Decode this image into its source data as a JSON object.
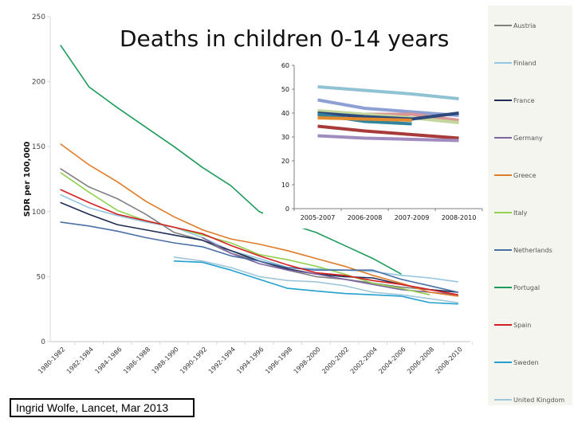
{
  "chart_data": [
    {
      "type": "line",
      "title": "Deaths in children 0-14 years",
      "xlabel": "",
      "ylabel": "SDR per 100,000",
      "ylim": [
        0,
        250
      ],
      "yticks": [
        0,
        50,
        100,
        150,
        200,
        250
      ],
      "grid": false,
      "legend": "right",
      "categories": [
        "1980-1982",
        "1982-1984",
        "1984-1986",
        "1986-1988",
        "1988-1990",
        "1990-1992",
        "1992-1994",
        "1994-1996",
        "1996-1998",
        "1998-2000",
        "2000-2002",
        "2002-2004",
        "2004-2006",
        "2006-2008",
        "2008-2010"
      ],
      "series": [
        {
          "name": "Austria",
          "color": "#808080",
          "values": [
            133,
            119,
            110,
            98,
            84,
            78,
            68,
            62,
            55,
            50,
            48,
            45,
            42,
            40,
            38
          ]
        },
        {
          "name": "Finland",
          "color": "#93c6e0",
          "values": [
            113,
            103,
            97,
            92,
            88,
            80,
            70,
            64,
            57,
            56,
            55,
            54,
            51,
            49,
            46
          ]
        },
        {
          "name": "France",
          "color": "#1f2d55",
          "values": [
            107,
            98,
            90,
            86,
            82,
            78,
            70,
            62,
            56,
            52,
            50,
            49,
            44,
            40,
            38
          ]
        },
        {
          "name": "Germany",
          "color": "#8064a2",
          "values": [
            null,
            null,
            null,
            null,
            null,
            80,
            68,
            60,
            55,
            52,
            48,
            44,
            40,
            38,
            36
          ]
        },
        {
          "name": "Greece",
          "color": "#e07b28",
          "values": [
            152,
            136,
            123,
            108,
            96,
            86,
            79,
            75,
            70,
            64,
            58,
            51,
            45,
            38,
            35
          ]
        },
        {
          "name": "Italy",
          "color": "#92d050",
          "values": [
            130,
            115,
            101,
            93,
            88,
            82,
            76,
            67,
            63,
            58,
            52,
            45,
            41,
            36,
            null
          ]
        },
        {
          "name": "Netherlands",
          "color": "#4a6fa5",
          "values": [
            92,
            89,
            85,
            80,
            76,
            73,
            66,
            62,
            57,
            55,
            55,
            55,
            48,
            43,
            38
          ]
        },
        {
          "name": "Portugal",
          "color": "#1e9b5a",
          "values": [
            228,
            196,
            180,
            165,
            150,
            134,
            120,
            100,
            91,
            84,
            74,
            64,
            52,
            null,
            null
          ]
        },
        {
          "name": "Spain",
          "color": "#d42020",
          "values": [
            117,
            107,
            98,
            93,
            88,
            83,
            74,
            66,
            59,
            53,
            51,
            47,
            44,
            40,
            36
          ]
        },
        {
          "name": "Sweden",
          "color": "#23a0d0",
          "values": [
            null,
            null,
            null,
            null,
            62,
            61,
            55,
            48,
            41,
            39,
            37,
            36,
            35,
            30,
            29
          ]
        },
        {
          "name": "United Kingdom",
          "color": "#9ec6d8",
          "values": [
            null,
            null,
            null,
            null,
            65,
            62,
            57,
            50,
            47,
            46,
            43,
            38,
            36,
            33,
            30
          ]
        }
      ]
    },
    {
      "type": "line",
      "title": "",
      "xlabel": "",
      "ylabel": "",
      "ylim": [
        0,
        60
      ],
      "yticks": [
        0,
        10,
        20,
        30,
        40,
        50,
        60
      ],
      "grid": false,
      "legend": "none",
      "placement": "inset-top-center",
      "categories": [
        "2005-2007",
        "2006-2008",
        "2007-2009",
        "2008-2010"
      ],
      "series": [
        {
          "name": "series-light-blue",
          "color": "#8fc3d3",
          "values": [
            51,
            49.5,
            48,
            46
          ]
        },
        {
          "name": "series-periwinkle",
          "color": "#8e9fd4",
          "values": [
            45.5,
            42,
            40.5,
            39
          ]
        },
        {
          "name": "series-pink",
          "color": "#d99694",
          "values": [
            39,
            39.5,
            39.5,
            37
          ]
        },
        {
          "name": "series-sage",
          "color": "#c3d69b",
          "values": [
            41,
            39.5,
            38,
            36
          ]
        },
        {
          "name": "series-olive-green",
          "color": "#a5c882",
          "values": [
            40,
            38.5,
            37.5,
            null
          ]
        },
        {
          "name": "series-navy",
          "color": "#2e4a7a",
          "values": [
            40,
            38.5,
            37.5,
            40
          ]
        },
        {
          "name": "series-teal",
          "color": "#31849b",
          "values": [
            39.5,
            36.5,
            35.5,
            null
          ]
        },
        {
          "name": "series-orange",
          "color": "#e38b2f",
          "values": [
            38,
            37.5,
            37,
            null
          ]
        },
        {
          "name": "series-dark-red",
          "color": "#a83a3a",
          "values": [
            34.5,
            32.5,
            31,
            29.5
          ]
        },
        {
          "name": "series-lavender",
          "color": "#a08cc0",
          "values": [
            30.5,
            29.5,
            29,
            28.5
          ]
        }
      ]
    }
  ],
  "citation": "Ingrid Wolfe, Lancet, Mar 2013"
}
